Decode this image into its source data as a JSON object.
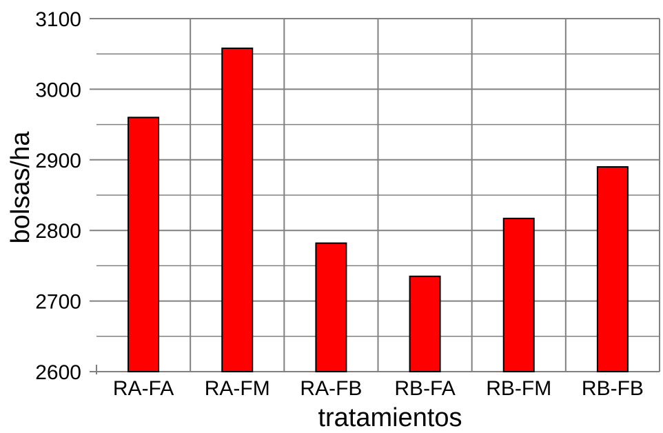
{
  "chart_data": {
    "type": "bar",
    "categories": [
      "RA-FA",
      "RA-FM",
      "RA-FB",
      "RB-FA",
      "RB-FM",
      "RB-FB"
    ],
    "values": [
      2960,
      3058,
      2782,
      2735,
      2817,
      2890
    ],
    "xlabel": "tratamientos",
    "ylabel": "bolsas/ha",
    "ylim": [
      2600,
      3100
    ],
    "yticks": [
      2600,
      2700,
      2800,
      2900,
      3000,
      3100
    ],
    "grid": true,
    "bar_color": "#ff0000",
    "bar_edge_color": "#000000",
    "grid_color": "#808080"
  }
}
